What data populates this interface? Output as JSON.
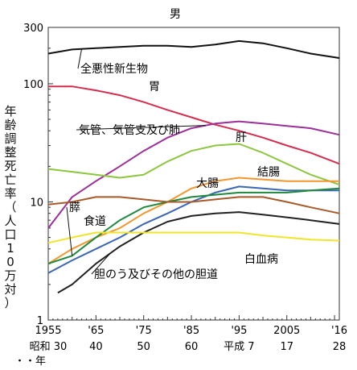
{
  "chart_data": {
    "type": "line",
    "title": "男",
    "ylabel": "年齢調整死亡率（人口10万対）",
    "yscale": "log",
    "ylim": [
      1,
      300
    ],
    "xlim": [
      1955,
      2016
    ],
    "yticks": [
      {
        "value": 300,
        "label": "300"
      },
      {
        "value": 100,
        "label": "100"
      },
      {
        "value": 10,
        "label": "10"
      },
      {
        "value": 1,
        "label": "1"
      }
    ],
    "xticks": [
      {
        "year": 1955,
        "label": "1955",
        "label2": "昭和 30"
      },
      {
        "year": 1965,
        "label": "'65",
        "label2": "40"
      },
      {
        "year": 1975,
        "label": "'75",
        "label2": "50"
      },
      {
        "year": 1985,
        "label": "'85",
        "label2": "60"
      },
      {
        "year": 1995,
        "label": "'95",
        "label2": "平成 7"
      },
      {
        "year": 2005,
        "label": "2005",
        "label2": "17"
      },
      {
        "year": 2016,
        "label": "'16",
        "label2": "28"
      }
    ],
    "xsub_label": "・・年",
    "series": [
      {
        "name": "全悪性新生物",
        "color": "#111111",
        "x": [
          1955,
          1960,
          1965,
          1970,
          1975,
          1980,
          1985,
          1990,
          1995,
          2000,
          2005,
          2010,
          2016
        ],
        "y": [
          180,
          195,
          200,
          205,
          210,
          210,
          205,
          215,
          230,
          220,
          200,
          180,
          165
        ]
      },
      {
        "name": "胃",
        "color": "#d62d4f",
        "x": [
          1955,
          1960,
          1965,
          1970,
          1975,
          1980,
          1985,
          1990,
          1995,
          2000,
          2005,
          2010,
          2016
        ],
        "y": [
          95,
          95,
          88,
          80,
          70,
          60,
          52,
          45,
          40,
          35,
          30,
          26,
          21
        ]
      },
      {
        "name": "気管、気管支及び肺",
        "color": "#9c2f9a",
        "x": [
          1955,
          1960,
          1965,
          1970,
          1975,
          1980,
          1985,
          1990,
          1995,
          2000,
          2005,
          2010,
          2016
        ],
        "y": [
          6,
          11,
          15,
          20,
          27,
          35,
          42,
          46,
          48,
          46,
          44,
          42,
          37
        ]
      },
      {
        "name": "肝",
        "color": "#8dc63f",
        "x": [
          1955,
          1960,
          1965,
          1970,
          1975,
          1980,
          1985,
          1990,
          1995,
          2000,
          2005,
          2010,
          2016
        ],
        "y": [
          19,
          18,
          17,
          16,
          17,
          22,
          27,
          30,
          31,
          26,
          21,
          17,
          14
        ]
      },
      {
        "name": "結腸",
        "color": "#f2962d",
        "x": [
          1955,
          1960,
          1965,
          1970,
          1975,
          1980,
          1985,
          1990,
          1995,
          2000,
          2005,
          2010,
          2016
        ],
        "y": [
          3,
          4,
          5,
          6,
          8,
          10,
          13,
          15,
          16,
          15.5,
          15,
          15,
          15
        ]
      },
      {
        "name": "大腸",
        "color": "#3a66b4",
        "x": [
          1955,
          1960,
          1965,
          1970,
          1975,
          1980,
          1985,
          1990,
          1995,
          2000,
          2005,
          2010,
          2016
        ],
        "y": [
          2.5,
          3.2,
          4,
          5,
          6.5,
          8,
          10,
          12,
          13.5,
          13,
          12.5,
          12.5,
          12.5
        ]
      },
      {
        "name": "膵",
        "color": "#1f8a3d",
        "x": [
          1955,
          1960,
          1965,
          1970,
          1975,
          1980,
          1985,
          1990,
          1995,
          2000,
          2005,
          2010,
          2016
        ],
        "y": [
          3,
          3.5,
          5,
          7,
          9,
          10,
          11,
          11.5,
          12,
          12,
          12,
          12.5,
          13
        ]
      },
      {
        "name": "食道",
        "color": "#a85a2a",
        "x": [
          1955,
          1960,
          1965,
          1970,
          1975,
          1980,
          1985,
          1990,
          1995,
          2000,
          2005,
          2010,
          2016
        ],
        "y": [
          9.5,
          10,
          11,
          11,
          10.5,
          10,
          10,
          10.5,
          11,
          11,
          10,
          9,
          8
        ]
      },
      {
        "name": "胆のう及びその他の胆道",
        "color": "#222222",
        "x": [
          1957,
          1960,
          1965,
          1970,
          1975,
          1980,
          1985,
          1990,
          1995,
          2000,
          2005,
          2010,
          2016
        ],
        "y": [
          1.7,
          2.0,
          3.0,
          4.2,
          5.5,
          6.8,
          7.6,
          8.0,
          8.2,
          7.8,
          7.4,
          7.0,
          6.5
        ]
      },
      {
        "name": "白血病",
        "color": "#f0e52a",
        "x": [
          1955,
          1960,
          1965,
          1970,
          1975,
          1980,
          1985,
          1990,
          1995,
          2000,
          2005,
          2010,
          2016
        ],
        "y": [
          4.5,
          5,
          5.5,
          5.5,
          5.5,
          5.5,
          5.5,
          5.5,
          5.5,
          5.2,
          5,
          4.8,
          4.7
        ]
      }
    ]
  }
}
